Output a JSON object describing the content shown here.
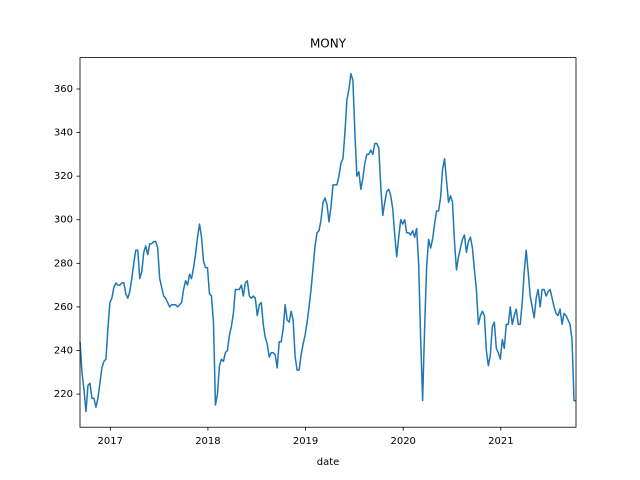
{
  "chart_data": {
    "type": "line",
    "title": "MONY",
    "x_label": "date",
    "color": "#1f77b4",
    "xlim": [
      2016.69,
      2021.7696
    ],
    "xticks": [
      2017,
      2018,
      2019,
      2020,
      2021
    ],
    "ylim": [
      204.8,
      374.4
    ],
    "yticks": [
      220,
      240,
      260,
      280,
      300,
      320,
      340,
      360
    ],
    "x": [
      2016.69,
      2016.7104,
      2016.7308,
      2016.7512,
      2016.7716,
      2016.792,
      2016.8124,
      2016.8328,
      2016.8532,
      2016.8736,
      2016.894,
      2016.9144,
      2016.9348,
      2016.9552,
      2016.9756,
      2016.996,
      2017.0164,
      2017.0368,
      2017.0572,
      2017.0776,
      2017.098,
      2017.1184,
      2017.1388,
      2017.1592,
      2017.1796,
      2017.2,
      2017.2204,
      2017.2408,
      2017.2612,
      2017.2816,
      2017.302,
      2017.3224,
      2017.3428,
      2017.3632,
      2017.3836,
      2017.404,
      2017.4244,
      2017.4448,
      2017.4652,
      2017.4856,
      2017.506,
      2017.5264,
      2017.5468,
      2017.5672,
      2017.5876,
      2017.608,
      2017.6284,
      2017.6488,
      2017.6692,
      2017.6896,
      2017.71,
      2017.7304,
      2017.7508,
      2017.7712,
      2017.7916,
      2017.812,
      2017.8324,
      2017.8528,
      2017.8732,
      2017.8936,
      2017.914,
      2017.9344,
      2017.9548,
      2017.9752,
      2017.9956,
      2018.016,
      2018.0364,
      2018.0568,
      2018.0772,
      2018.0976,
      2018.118,
      2018.1384,
      2018.1588,
      2018.1792,
      2018.1996,
      2018.22,
      2018.2404,
      2018.2608,
      2018.2812,
      2018.3016,
      2018.322,
      2018.3424,
      2018.3628,
      2018.3832,
      2018.4036,
      2018.424,
      2018.4444,
      2018.4648,
      2018.4852,
      2018.5056,
      2018.526,
      2018.5464,
      2018.5668,
      2018.5872,
      2018.6076,
      2018.628,
      2018.6484,
      2018.6688,
      2018.6892,
      2018.7096,
      2018.73,
      2018.7504,
      2018.7708,
      2018.7912,
      2018.8116,
      2018.832,
      2018.8524,
      2018.8728,
      2018.8932,
      2018.9136,
      2018.934,
      2018.9544,
      2018.9748,
      2018.9952,
      2019.0156,
      2019.036,
      2019.0564,
      2019.0768,
      2019.0972,
      2019.1176,
      2019.138,
      2019.1584,
      2019.1788,
      2019.1992,
      2019.2196,
      2019.24,
      2019.2604,
      2019.2808,
      2019.3012,
      2019.3216,
      2019.342,
      2019.3624,
      2019.3828,
      2019.4032,
      2019.4236,
      2019.444,
      2019.4644,
      2019.4848,
      2019.5052,
      2019.5256,
      2019.546,
      2019.5664,
      2019.5868,
      2019.6072,
      2019.6276,
      2019.648,
      2019.6684,
      2019.6888,
      2019.7092,
      2019.7296,
      2019.75,
      2019.7704,
      2019.7908,
      2019.8112,
      2019.8316,
      2019.852,
      2019.8724,
      2019.8928,
      2019.9132,
      2019.9336,
      2019.954,
      2019.9744,
      2019.9948,
      2020.0152,
      2020.0356,
      2020.056,
      2020.0764,
      2020.0968,
      2020.1172,
      2020.1376,
      2020.158,
      2020.1784,
      2020.1988,
      2020.2192,
      2020.2396,
      2020.26,
      2020.2804,
      2020.3008,
      2020.3212,
      2020.3416,
      2020.362,
      2020.3824,
      2020.4028,
      2020.4232,
      2020.4436,
      2020.464,
      2020.4844,
      2020.5048,
      2020.5252,
      2020.5456,
      2020.566,
      2020.5864,
      2020.6068,
      2020.6272,
      2020.6476,
      2020.668,
      2020.6884,
      2020.7088,
      2020.7292,
      2020.7496,
      2020.77,
      2020.7904,
      2020.8108,
      2020.8312,
      2020.8516,
      2020.872,
      2020.8924,
      2020.9128,
      2020.9332,
      2020.9536,
      2020.974,
      2020.9944,
      2021.0148,
      2021.0352,
      2021.0556,
      2021.076,
      2021.0964,
      2021.1168,
      2021.1372,
      2021.1576,
      2021.178,
      2021.1984,
      2021.2188,
      2021.2392,
      2021.2596,
      2021.28,
      2021.3004,
      2021.3208,
      2021.3412,
      2021.3616,
      2021.382,
      2021.4024,
      2021.4228,
      2021.4432,
      2021.4636,
      2021.484,
      2021.5044,
      2021.5248,
      2021.5452,
      2021.5656,
      2021.586,
      2021.6064,
      2021.6268,
      2021.6472,
      2021.6676,
      2021.688,
      2021.7084,
      2021.7288,
      2021.7492,
      2021.7696
    ],
    "values": [
      244,
      230,
      222,
      212,
      224,
      225,
      218,
      218,
      214,
      218,
      225,
      232,
      235,
      236,
      250,
      262,
      264,
      269,
      271,
      270,
      270,
      271,
      271,
      266,
      264,
      267,
      273,
      280,
      286,
      286,
      273,
      276,
      285,
      288,
      284,
      289,
      289,
      290,
      290,
      287,
      273,
      269,
      265,
      264,
      262,
      260,
      261,
      261,
      261,
      260,
      261,
      262,
      268,
      272,
      270,
      275,
      273,
      278,
      284,
      292,
      298,
      292,
      281,
      278,
      278,
      266,
      265,
      253,
      215,
      220,
      233,
      236,
      235,
      239,
      240,
      247,
      251,
      257,
      268,
      268,
      268,
      270,
      265,
      271,
      272,
      265,
      264,
      265,
      264,
      256,
      261,
      262,
      252,
      246,
      243,
      237,
      239,
      239,
      238,
      232,
      244,
      244,
      250,
      261,
      254,
      253,
      258,
      254,
      237,
      231,
      231,
      238,
      243,
      247,
      253,
      260,
      268,
      278,
      288,
      294,
      295,
      300,
      308,
      310,
      307,
      299,
      306,
      316,
      316,
      316,
      320,
      326,
      328,
      340,
      355,
      360,
      367,
      364,
      340,
      320,
      322,
      314,
      319,
      326,
      330,
      330,
      332,
      330,
      335,
      335,
      333,
      315,
      302,
      308,
      313,
      314,
      311,
      305,
      293,
      283,
      292,
      300,
      298,
      300,
      294,
      294,
      293,
      295,
      292,
      296,
      280,
      246,
      217,
      250,
      278,
      291,
      287,
      291,
      298,
      304,
      304,
      310,
      323,
      328,
      318,
      308,
      311,
      308,
      290,
      277,
      283,
      287,
      291,
      293,
      285,
      290,
      292,
      287,
      277,
      268,
      252,
      256,
      258,
      256,
      240,
      233,
      238,
      251,
      253,
      241,
      239,
      236,
      245,
      241,
      252,
      252,
      260,
      252,
      256,
      259,
      252,
      252,
      262,
      276,
      286,
      276,
      265,
      260,
      255,
      264,
      268,
      260,
      268,
      268,
      265,
      267,
      268,
      264,
      260,
      257,
      256,
      259,
      252,
      257,
      256,
      254,
      252,
      245,
      217,
      217
    ]
  }
}
